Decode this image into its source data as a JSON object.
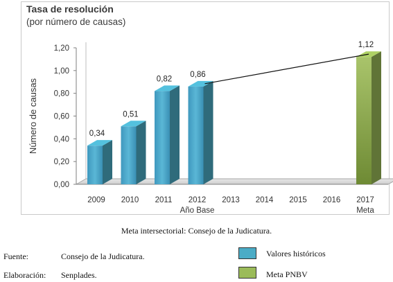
{
  "panel": {
    "title": "Tasa de resolución",
    "subtitle": "(por número de causas)"
  },
  "chart_data": {
    "type": "bar",
    "categories": [
      "2009",
      "2010",
      "2011",
      "2012",
      "2013",
      "2014",
      "2015",
      "2016",
      "2017"
    ],
    "category_sublabels": {
      "2012": "Año Base",
      "2017": "Meta"
    },
    "series": [
      {
        "name": "Valores históricos",
        "color": "#4bacc6",
        "values": [
          0.34,
          0.51,
          0.82,
          0.86,
          null,
          null,
          null,
          null,
          null
        ]
      },
      {
        "name": "Meta PNBV",
        "color": "#9bbb59",
        "values": [
          null,
          null,
          null,
          null,
          null,
          null,
          null,
          null,
          1.12
        ]
      }
    ],
    "data_labels": [
      "0,34",
      "0,51",
      "0,82",
      "0,86",
      "",
      "",
      "",
      "",
      "1,12"
    ],
    "trend_line": {
      "from": "2012",
      "to": "2017"
    },
    "ylabel": "Número de causas",
    "ylim": [
      0,
      1.2
    ],
    "yticks": [
      "0,00",
      "0,20",
      "0,40",
      "0,60",
      "0,80",
      "1,00",
      "1,20"
    ],
    "grid": false
  },
  "caption": "Meta intersectorial: Consejo de la Judicatura.",
  "source": {
    "fuente_label": "Fuente:",
    "fuente_value": "Consejo de la Judicatura.",
    "elaboracion_label": "Elaboración:",
    "elaboracion_value": "Senplades."
  },
  "legend": {
    "items": [
      {
        "label": "Valores históricos",
        "color": "#4bacc6"
      },
      {
        "label": "Meta PNBV",
        "color": "#9bbb59"
      }
    ]
  }
}
